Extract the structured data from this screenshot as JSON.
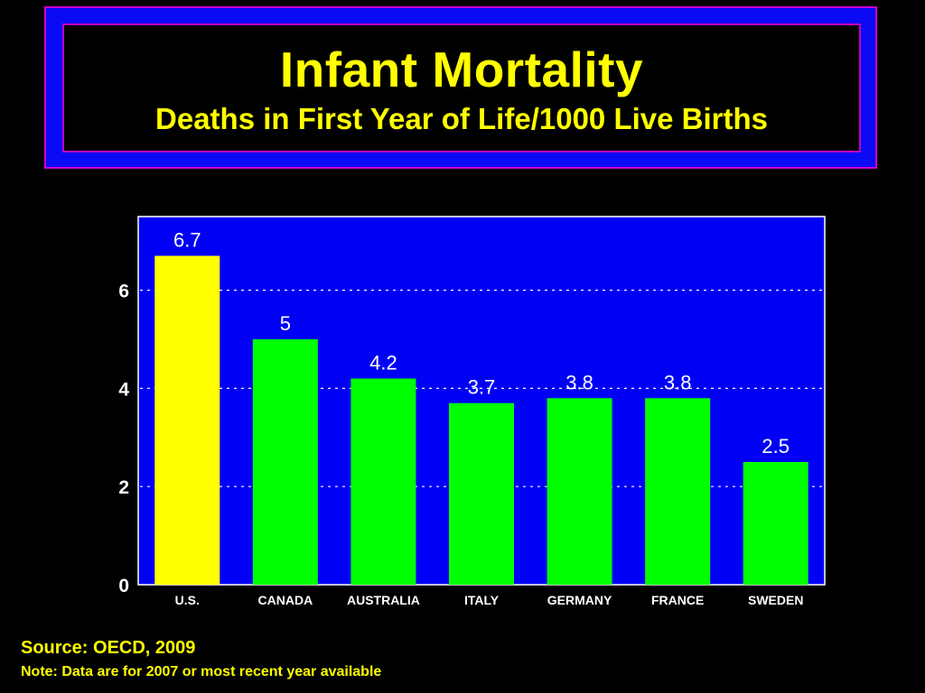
{
  "slide": {
    "title": "Infant Mortality",
    "subtitle": "Deaths in First Year of Life/1000 Live Births",
    "source": "Source: OECD, 2009",
    "note": "Note: Data are for 2007 or most recent year available"
  },
  "colors": {
    "background": "#000000",
    "title_frame": "#0a0af5",
    "title_border": "#d000d0",
    "title_text": "#ffff00",
    "plot_background": "#0000f5",
    "highlight_bar": "#ffff00",
    "bar": "#00ff00",
    "label_text": "#ffffff"
  },
  "chart_data": {
    "type": "bar",
    "title": "Infant Mortality",
    "subtitle": "Deaths in First Year of Life/1000 Live Births",
    "categories": [
      "U.S.",
      "CANADA",
      "AUSTRALIA",
      "ITALY",
      "GERMANY",
      "FRANCE",
      "SWEDEN"
    ],
    "values": [
      6.7,
      5,
      4.2,
      3.7,
      3.8,
      3.8,
      2.5
    ],
    "data_labels": [
      "6.7",
      "5",
      "4.2",
      "3.7",
      "3.8",
      "3.8",
      "2.5"
    ],
    "highlight": "U.S.",
    "ylim": [
      0,
      7.5
    ],
    "yticks": [
      0,
      2,
      4,
      6
    ],
    "ytick_labels": [
      "0",
      "2",
      "4",
      "6"
    ],
    "grid": "horizontal dotted",
    "legend": "none"
  }
}
